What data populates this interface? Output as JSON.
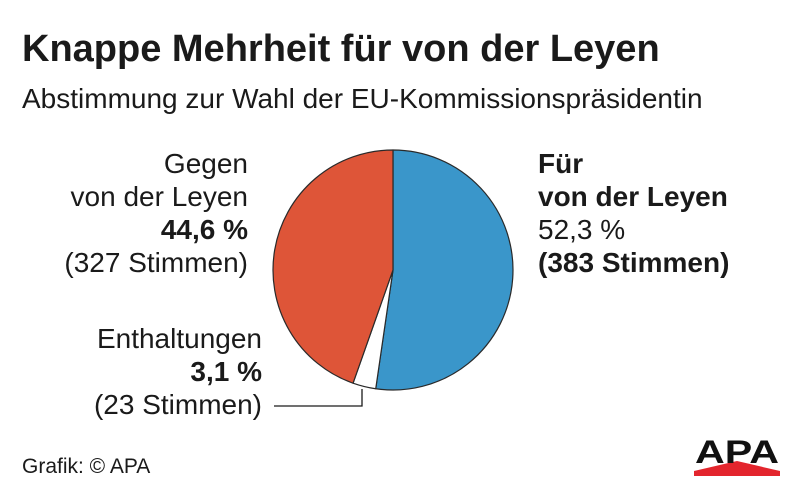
{
  "chart_data": {
    "type": "pie",
    "title": "Knappe Mehrheit für von der Leyen",
    "subtitle": "Abstimmung zur Wahl der EU-Kommissionspräsidentin",
    "slices": [
      {
        "label_lines": [
          "Für",
          "von der Leyen"
        ],
        "percent_label": "52,3 %",
        "votes_label": "(383 Stimmen)",
        "value": 52.3,
        "color": "#3a96ca"
      },
      {
        "label_lines": [
          "Enthaltungen"
        ],
        "percent_label": "3,1 %",
        "votes_label": "(23 Stimmen)",
        "value": 3.1,
        "color": "#ffffff"
      },
      {
        "label_lines": [
          "Gegen",
          "von der Leyen"
        ],
        "percent_label": "44,6 %",
        "votes_label": "(327 Stimmen)",
        "value": 44.6,
        "color": "#de5538"
      }
    ]
  },
  "footer": {
    "credit": "Grafik: © APA"
  },
  "logo": {
    "text": "APA",
    "accent_color": "#e3252d"
  }
}
